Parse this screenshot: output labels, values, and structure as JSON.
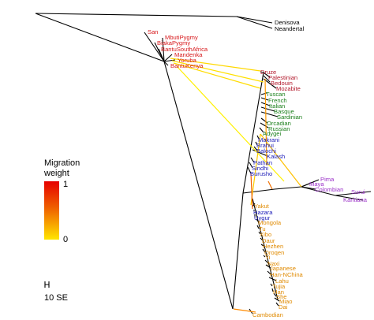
{
  "colors": {
    "africa": "#d7191c",
    "middle_east": "#b2182b",
    "europe": "#1a7f1a",
    "central_south_asia": "#1c1cb8",
    "america": "#9b30c8",
    "east_asia": "#e08a00",
    "tree": "#000000",
    "mig_low": "#ffe600",
    "mig_high": "#e60000"
  },
  "outgroups": [
    "Denisova",
    "Neandertal"
  ],
  "populations": {
    "africa": [
      "San",
      "MbutiPygmy",
      "BiakaPygmy",
      "BantuSouthAfrica",
      "Mandenka",
      "Yoruba",
      "BantuKenya"
    ],
    "middle_east": [
      "Druze",
      "Palestinian",
      "Bedouin",
      "Mozabite"
    ],
    "europe": [
      "Tuscan",
      "French",
      "Italian",
      "Basque",
      "Sardinian",
      "Orcadian",
      "Russian",
      "Adygei"
    ],
    "central_south_asia": [
      "Makrani",
      "Brahui",
      "Balochi",
      "Kalash",
      "Pathan",
      "Sindhi",
      "Burusho",
      "Hazara",
      "Uygur"
    ],
    "america": [
      "Pima",
      "Maya",
      "Colombian",
      "Surui",
      "Karitiana"
    ],
    "east_asia": [
      "Yakut",
      "Mongola",
      "Tu",
      "Xibo",
      "Daur",
      "Hezhen",
      "Oroqen",
      "Yi",
      "Naxi",
      "Japanese",
      "Han-NChina",
      "Lahu",
      "Tujia",
      "Han",
      "She",
      "Miao",
      "Dai",
      "Cambodian"
    ]
  },
  "legend": {
    "title_line1": "Migration",
    "title_line2": "weight",
    "max_label": "1",
    "min_label": "0"
  },
  "scale": {
    "label": "10 SE"
  }
}
